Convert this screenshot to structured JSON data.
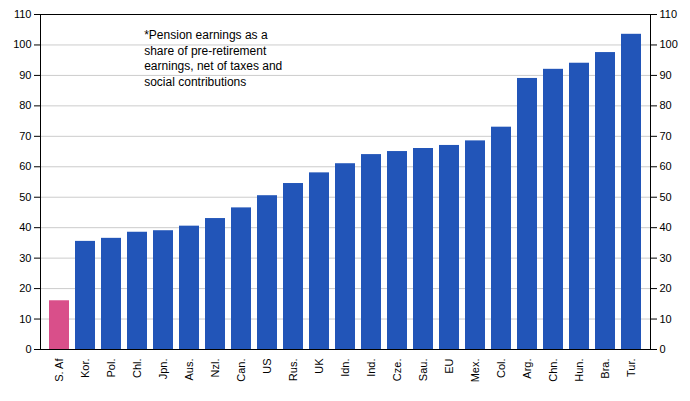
{
  "chart_data": {
    "type": "bar",
    "categories": [
      "S. Af",
      "Kor.",
      "Pol.",
      "Chl.",
      "Jpn.",
      "Aus.",
      "Nzl.",
      "Can.",
      "US",
      "Rus.",
      "UK",
      "Idn.",
      "Ind.",
      "Cze.",
      "Sau.",
      "EU",
      "Mex.",
      "Col.",
      "Arg.",
      "Chn.",
      "Hun.",
      "Bra.",
      "Tur."
    ],
    "values": [
      16,
      35.5,
      36.5,
      38.5,
      39,
      40.5,
      43,
      46.5,
      50.5,
      54.5,
      58,
      61,
      64,
      65,
      66,
      67,
      68.5,
      73,
      89,
      92,
      94,
      97.5,
      103.5
    ],
    "colors": [
      "#d94f8a",
      "#2255b8",
      "#2255b8",
      "#2255b8",
      "#2255b8",
      "#2255b8",
      "#2255b8",
      "#2255b8",
      "#2255b8",
      "#2255b8",
      "#2255b8",
      "#2255b8",
      "#2255b8",
      "#2255b8",
      "#2255b8",
      "#2255b8",
      "#2255b8",
      "#2255b8",
      "#2255b8",
      "#2255b8",
      "#2255b8",
      "#2255b8",
      "#2255b8"
    ],
    "ylim": [
      0,
      110
    ],
    "yticks": [
      0,
      10,
      20,
      30,
      40,
      50,
      60,
      70,
      80,
      90,
      100,
      110
    ],
    "grid": true,
    "annotation": "*Pension earnings as a\nshare of pre-retirement\nearnings, net of taxes and\nsocial contributions"
  }
}
